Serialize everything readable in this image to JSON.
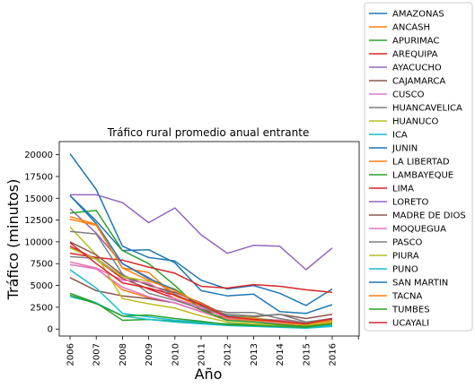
{
  "chart_data": {
    "type": "line",
    "title": "Tráfico rural promedio anual entrante",
    "xlabel": "Año",
    "ylabel": "Tráfico (minutos)",
    "x": [
      "2006",
      "2007",
      "2008",
      "2009",
      "2010",
      "2011",
      "2012",
      "2013",
      "2014",
      "2015",
      "2016"
    ],
    "yticks": [
      "0",
      "2500",
      "5000",
      "7500",
      "10000",
      "12500",
      "15000",
      "17500",
      "20000"
    ],
    "ylim": [
      -800,
      21500
    ],
    "grid": false,
    "legend_placement": "outside-right",
    "series": [
      {
        "name": "AMAZONAS",
        "color": "#1f77b4",
        "values": [
          15300,
          12400,
          9000,
          9100,
          7600,
          4400,
          3800,
          4000,
          2000,
          1800,
          2800
        ]
      },
      {
        "name": "ANCASH",
        "color": "#ff7f0e",
        "values": [
          7700,
          7000,
          4500,
          3600,
          3000,
          2000,
          1000,
          900,
          600,
          500,
          900
        ]
      },
      {
        "name": "APURIMAC",
        "color": "#2ca02c",
        "values": [
          4100,
          3000,
          1000,
          1100,
          900,
          700,
          600,
          500,
          300,
          200,
          400
        ]
      },
      {
        "name": "AREQUIPA",
        "color": "#d62728",
        "values": [
          9500,
          8000,
          5800,
          4600,
          3500,
          2200,
          1500,
          1200,
          1000,
          700,
          1000
        ]
      },
      {
        "name": "AYACUCHO",
        "color": "#9467bd",
        "values": [
          13800,
          11000,
          7500,
          5900,
          4000,
          2500,
          1500,
          1300,
          800,
          500,
          900
        ]
      },
      {
        "name": "CAJAMARCA",
        "color": "#8c564b",
        "values": [
          5900,
          4400,
          3800,
          3500,
          3000,
          2000,
          1200,
          1000,
          800,
          600,
          1100
        ]
      },
      {
        "name": "CUSCO",
        "color": "#e377c2",
        "values": [
          7400,
          6900,
          4800,
          3700,
          3000,
          2000,
          1100,
          900,
          700,
          500,
          800
        ]
      },
      {
        "name": "HUANCAVELICA",
        "color": "#7f7f7f",
        "values": [
          8300,
          8100,
          6000,
          5100,
          4000,
          2500,
          1900,
          1900,
          1200,
          700,
          1000
        ]
      },
      {
        "name": "HUANUCO",
        "color": "#bcbd22",
        "values": [
          11700,
          8500,
          3500,
          2900,
          2400,
          1500,
          800,
          600,
          400,
          300,
          500
        ]
      },
      {
        "name": "ICA",
        "color": "#17becf",
        "values": [
          6800,
          4700,
          1800,
          1400,
          1000,
          800,
          500,
          400,
          300,
          200,
          400
        ]
      },
      {
        "name": "JUNIN",
        "color": "#1f77b4",
        "values": [
          20100,
          16000,
          9500,
          8200,
          7800,
          5600,
          4600,
          5000,
          4100,
          2700,
          4600
        ]
      },
      {
        "name": "LA LIBERTAD",
        "color": "#ff7f0e",
        "values": [
          12600,
          11900,
          7000,
          6500,
          3800,
          2600,
          1200,
          1000,
          800,
          400,
          700
        ]
      },
      {
        "name": "LAMBAYEQUE",
        "color": "#2ca02c",
        "values": [
          13300,
          13600,
          9000,
          7500,
          5000,
          2200,
          1000,
          800,
          500,
          300,
          600
        ]
      },
      {
        "name": "LIMA",
        "color": "#d62728",
        "values": [
          8700,
          8200,
          7900,
          7100,
          6400,
          4900,
          4700,
          5100,
          4900,
          4500,
          4200
        ]
      },
      {
        "name": "LORETO",
        "color": "#9467bd",
        "values": [
          15400,
          15400,
          14500,
          12200,
          13900,
          10800,
          8700,
          9600,
          9500,
          6800,
          9300
        ]
      },
      {
        "name": "MADRE DE DIOS",
        "color": "#8c564b",
        "values": [
          10000,
          8500,
          6200,
          5000,
          4200,
          3000,
          1500,
          1400,
          1700,
          1200,
          1700
        ]
      },
      {
        "name": "MOQUEGUA",
        "color": "#e377c2",
        "values": [
          7700,
          7000,
          5600,
          5300,
          3500,
          2500,
          1300,
          1100,
          1000,
          600,
          900
        ]
      },
      {
        "name": "PASCO",
        "color": "#7f7f7f",
        "values": [
          11200,
          10900,
          6300,
          4100,
          3300,
          2300,
          1700,
          1500,
          1700,
          800,
          1200
        ]
      },
      {
        "name": "PIURA",
        "color": "#bcbd22",
        "values": [
          9300,
          8000,
          6000,
          5500,
          4600,
          2700,
          1500,
          1300,
          900,
          500,
          800
        ]
      },
      {
        "name": "PUNO",
        "color": "#17becf",
        "values": [
          3700,
          3000,
          1500,
          1100,
          800,
          600,
          400,
          300,
          200,
          100,
          300
        ]
      },
      {
        "name": "SAN MARTIN",
        "color": "#1f77b4",
        "values": [
          15300,
          12100,
          7500,
          5800,
          4500,
          2700,
          1500,
          1200,
          900,
          600,
          1100
        ]
      },
      {
        "name": "TACNA",
        "color": "#ff7f0e",
        "values": [
          12900,
          12000,
          7000,
          5600,
          4400,
          2900,
          1400,
          1200,
          800,
          600,
          1000
        ]
      },
      {
        "name": "TUMBES",
        "color": "#2ca02c",
        "values": [
          3900,
          2900,
          1500,
          1600,
          1200,
          900,
          500,
          400,
          300,
          200,
          600
        ]
      },
      {
        "name": "UCAYALI",
        "color": "#d62728",
        "values": [
          9900,
          7500,
          5300,
          4700,
          3900,
          2800,
          1400,
          1100,
          900,
          600,
          1200
        ]
      }
    ]
  }
}
